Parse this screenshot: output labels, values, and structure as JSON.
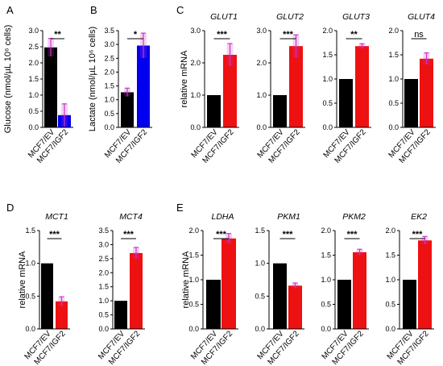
{
  "colors": {
    "control": "#000000",
    "glucose_treated": "#0000ee",
    "lactate_treated": "#0000ee",
    "treated": "#ee1111",
    "error": "#cc33cc",
    "axis": "#000000"
  },
  "chart_data": [
    {
      "id": "A",
      "letter": "A",
      "type": "bar",
      "title": "",
      "ylabel": "Glucose (nmol/µL 10⁶ cells)",
      "ylim": [
        0,
        3
      ],
      "yticks": [
        "0.0",
        "0.5",
        "1.0",
        "1.5",
        "2.0",
        "2.5",
        "3.0"
      ],
      "categories": [
        "MCF7/EV",
        "MCF7/IGF2"
      ],
      "values": [
        2.48,
        0.38
      ],
      "errors": [
        0.28,
        0.35
      ],
      "significance": "**",
      "treated_color": "glucose_treated"
    },
    {
      "id": "B",
      "letter": "B",
      "type": "bar",
      "title": "",
      "ylabel": "Lactate (nmol/µL 10⁶ cells)",
      "ylim": [
        0,
        3.5
      ],
      "yticks": [
        "0.0",
        "0.5",
        "1.0",
        "1.5",
        "2.0",
        "2.5",
        "3.0",
        "3.5"
      ],
      "categories": [
        "MCF7/EV",
        "MCF7/IGF2"
      ],
      "values": [
        1.27,
        2.96
      ],
      "errors": [
        0.15,
        0.45
      ],
      "significance": "*",
      "treated_color": "lactate_treated"
    },
    {
      "id": "C1",
      "letter": "C",
      "type": "bar",
      "title": "GLUT1",
      "ylabel": "relative mRNA",
      "ylim": [
        0,
        3
      ],
      "yticks": [
        "0.0",
        "1.0",
        "2.0",
        "3.0"
      ],
      "categories": [
        "MCF7/EV",
        "MCF7/IGF2"
      ],
      "values": [
        1.0,
        2.25
      ],
      "errors": [
        0.0,
        0.35
      ],
      "significance": "***"
    },
    {
      "id": "C2",
      "letter": "",
      "type": "bar",
      "title": "GLUT2",
      "ylabel": "",
      "ylim": [
        0,
        3
      ],
      "yticks": [
        "0.0",
        "1.0",
        "2.0",
        "3.0"
      ],
      "categories": [
        "MCF7/EV",
        "MCF7/IGF2"
      ],
      "values": [
        1.0,
        2.52
      ],
      "errors": [
        0.0,
        0.35
      ],
      "significance": "***"
    },
    {
      "id": "C3",
      "letter": "",
      "type": "bar",
      "title": "GLUT3",
      "ylabel": "",
      "ylim": [
        0,
        2.0
      ],
      "yticks": [
        "0.0",
        "0.5",
        "1.0",
        "1.5",
        "2.0"
      ],
      "categories": [
        "MCF7/EV",
        "MCF7/IGF2"
      ],
      "values": [
        1.0,
        1.68
      ],
      "errors": [
        0.0,
        0.05
      ],
      "significance": "**"
    },
    {
      "id": "C4",
      "letter": "",
      "type": "bar",
      "title": "GLUT4",
      "ylabel": "",
      "ylim": [
        0,
        2.0
      ],
      "yticks": [
        "0.0",
        "0.5",
        "1.0",
        "1.5",
        "2.0"
      ],
      "categories": [
        "MCF7/EV",
        "MCF7/IGF2"
      ],
      "values": [
        1.0,
        1.42
      ],
      "errors": [
        0.0,
        0.12
      ],
      "significance": "ns"
    },
    {
      "id": "D1",
      "letter": "D",
      "type": "bar",
      "title": "MCT1",
      "ylabel": "relative mRNA",
      "ylim": [
        0,
        1.5
      ],
      "yticks": [
        "0.0",
        "0.5",
        "1.0",
        "1.5"
      ],
      "categories": [
        "MCF7/EV",
        "MCF7/IGF2"
      ],
      "values": [
        1.0,
        0.42
      ],
      "errors": [
        0.0,
        0.07
      ],
      "significance": "***"
    },
    {
      "id": "D2",
      "letter": "",
      "type": "bar",
      "title": "MCT4",
      "ylabel": "",
      "ylim": [
        0,
        3.5
      ],
      "yticks": [
        "0.0",
        "0.5",
        "1.0",
        "1.5",
        "2.0",
        "2.5",
        "3.0",
        "3.5"
      ],
      "categories": [
        "MCF7/EV",
        "MCF7/IGF2"
      ],
      "values": [
        1.0,
        2.7
      ],
      "errors": [
        0.0,
        0.2
      ],
      "significance": "***"
    },
    {
      "id": "E1",
      "letter": "E",
      "type": "bar",
      "title": "LDHA",
      "ylabel": "relative mRNA",
      "ylim": [
        0,
        2.0
      ],
      "yticks": [
        "0.0",
        "0.5",
        "1.0",
        "1.5",
        "2.0"
      ],
      "categories": [
        "MCF7/EV",
        "MCF7/IGF2"
      ],
      "values": [
        1.0,
        1.84
      ],
      "errors": [
        0.0,
        0.1
      ],
      "significance": "***"
    },
    {
      "id": "E2",
      "letter": "",
      "type": "bar",
      "title": "PKM1",
      "ylabel": "",
      "ylim": [
        0,
        1.5
      ],
      "yticks": [
        "0.0",
        "0.5",
        "1.0",
        "1.5"
      ],
      "categories": [
        "MCF7/EV",
        "MCF7/IGF2"
      ],
      "values": [
        1.0,
        0.66
      ],
      "errors": [
        0.0,
        0.04
      ],
      "significance": "***"
    },
    {
      "id": "E3",
      "letter": "",
      "type": "bar",
      "title": "PKM2",
      "ylabel": "",
      "ylim": [
        0,
        2.0
      ],
      "yticks": [
        "0.0",
        "0.5",
        "1.0",
        "1.5",
        "2.0"
      ],
      "categories": [
        "MCF7/EV",
        "MCF7/IGF2"
      ],
      "values": [
        1.0,
        1.56
      ],
      "errors": [
        0.0,
        0.06
      ],
      "significance": "***"
    },
    {
      "id": "E4",
      "letter": "",
      "type": "bar",
      "title": "EK2",
      "ylabel": "",
      "ylim": [
        0,
        2.0
      ],
      "yticks": [
        "0.0",
        "0.5",
        "1.0",
        "1.5",
        "2.0"
      ],
      "categories": [
        "MCF7/EV",
        "MCF7/IGF2"
      ],
      "values": [
        1.0,
        1.8
      ],
      "errors": [
        0.0,
        0.08
      ],
      "significance": "***"
    }
  ]
}
